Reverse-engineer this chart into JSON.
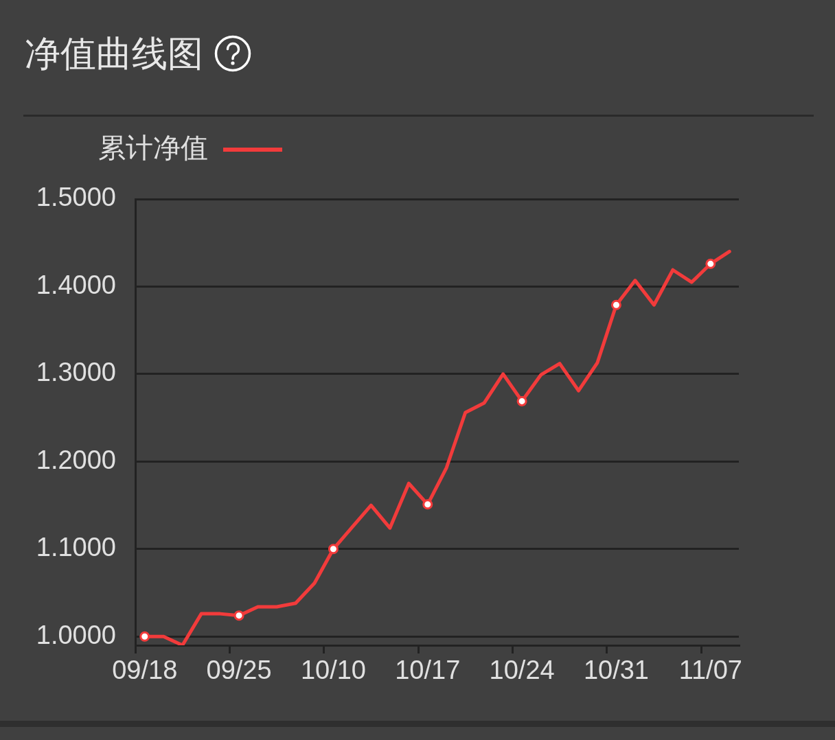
{
  "chart_data": {
    "type": "line",
    "title": "净值曲线图",
    "categories": [
      "09/18",
      null,
      null,
      null,
      null,
      "09/25",
      null,
      null,
      null,
      null,
      "10/10",
      null,
      null,
      null,
      null,
      "10/17",
      null,
      null,
      null,
      null,
      "10/24",
      null,
      null,
      null,
      null,
      "10/31",
      null,
      null,
      null,
      null,
      "11/07",
      null
    ],
    "series": [
      {
        "name": "累计净值",
        "color": "#f23b3b",
        "values": [
          1.0,
          1.0,
          0.99,
          1.026,
          1.026,
          1.024,
          1.034,
          1.034,
          1.038,
          1.061,
          1.1,
          1.125,
          1.15,
          1.124,
          1.175,
          1.151,
          1.193,
          1.256,
          1.267,
          1.3,
          1.269,
          1.299,
          1.312,
          1.281,
          1.313,
          1.379,
          1.407,
          1.379,
          1.419,
          1.405,
          1.426,
          1.44
        ]
      },
      {
        "type": "scatter",
        "color": "#f23b3b",
        "marker": "circle",
        "x": [
          "09/18",
          "09/25",
          "10/10",
          "10/17",
          "10/24",
          "10/31",
          "11/07"
        ],
        "values": [
          1.0,
          1.024,
          1.1,
          1.151,
          1.269,
          1.379,
          1.426
        ]
      }
    ],
    "ylim": [
      0.99,
      1.5
    ],
    "yticks": [
      {
        "value": 1.0,
        "label": "1.0000"
      },
      {
        "value": 1.1,
        "label": "1.1000"
      },
      {
        "value": 1.2,
        "label": "1.2000"
      },
      {
        "value": 1.3,
        "label": "1.3000"
      },
      {
        "value": 1.4,
        "label": "1.4000"
      },
      {
        "value": 1.5,
        "label": "1.5000"
      }
    ],
    "grid": "y",
    "legend": "top left",
    "line_style": "solid"
  }
}
